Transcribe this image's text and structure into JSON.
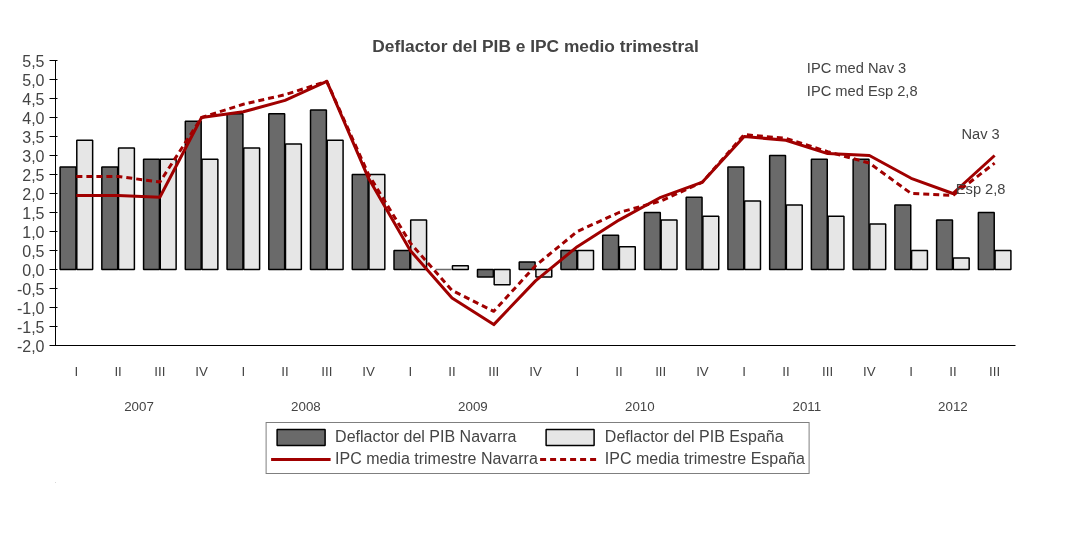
{
  "chart_data": {
    "type": "bar",
    "title": "Deflactor del PIB e IPC medio trimestral",
    "categories": [
      "I",
      "II",
      "III",
      "IV",
      "I",
      "II",
      "III",
      "IV",
      "I",
      "II",
      "III",
      "IV",
      "I",
      "II",
      "III",
      "IV",
      "I",
      "II",
      "III",
      "IV",
      "I",
      "II",
      "III"
    ],
    "series": [
      {
        "name": "Deflactor del PIB Navarra",
        "color": "#6a6a6a",
        "values": [
          2.7,
          2.7,
          2.9,
          3.9,
          4.1,
          4.1,
          4.2,
          2.5,
          0.5,
          0.0,
          -0.2,
          0.2,
          0.5,
          0.9,
          1.5,
          1.9,
          2.7,
          3.0,
          2.9,
          2.9,
          1.7,
          1.3,
          1.5
        ]
      },
      {
        "name": "Deflactor del PIB España",
        "color": "#e6e6e6",
        "values": [
          3.4,
          3.2,
          2.9,
          2.9,
          3.2,
          3.3,
          3.4,
          2.5,
          1.3,
          0.1,
          -0.4,
          -0.2,
          0.5,
          0.6,
          1.3,
          1.4,
          1.8,
          1.7,
          1.4,
          1.2,
          0.5,
          0.3,
          0.5
        ]
      },
      {
        "name": "IPC media trimestre Navarra",
        "type": "line",
        "line_style": "solid",
        "color": "#a00000",
        "values": [
          1.95,
          1.95,
          1.9,
          4.0,
          4.15,
          4.45,
          4.95,
          2.4,
          0.5,
          -0.75,
          -1.45,
          -0.3,
          0.6,
          1.3,
          1.9,
          2.3,
          3.5,
          3.4,
          3.05,
          3.0,
          2.4,
          2.0,
          3.0
        ]
      },
      {
        "name": "IPC media trimestre España",
        "type": "line",
        "line_style": "dashed",
        "color": "#a00000",
        "values": [
          2.45,
          2.45,
          2.3,
          4.0,
          4.35,
          4.6,
          4.95,
          2.5,
          0.7,
          -0.55,
          -1.1,
          0.1,
          1.0,
          1.5,
          1.8,
          2.3,
          3.55,
          3.45,
          3.1,
          2.8,
          2.0,
          1.95,
          2.8
        ]
      }
    ],
    "ylim": [
      -2.0,
      5.5
    ],
    "yticks": [
      {
        "value": -2.0,
        "label": "-2,0"
      },
      {
        "value": -1.5,
        "label": "-1,5"
      },
      {
        "value": -1.0,
        "label": "-1,0"
      },
      {
        "value": -0.5,
        "label": "-0,5"
      },
      {
        "value": 0.0,
        "label": "0,0"
      },
      {
        "value": 0.5,
        "label": "0,5"
      },
      {
        "value": 1.0,
        "label": "1,0"
      },
      {
        "value": 1.5,
        "label": "1,5"
      },
      {
        "value": 2.0,
        "label": "2,0"
      },
      {
        "value": 2.5,
        "label": "2,5"
      },
      {
        "value": 3.0,
        "label": "3,0"
      },
      {
        "value": 3.5,
        "label": "3,5"
      },
      {
        "value": 4.0,
        "label": "4,0"
      },
      {
        "value": 4.5,
        "label": "4,5"
      },
      {
        "value": 5.0,
        "label": "5,0"
      },
      {
        "value": 5.5,
        "label": "5,5"
      }
    ],
    "annotations": [
      "2007",
      "2008",
      "2009",
      "2010",
      "2011",
      "2012",
      "IPC med Nav 3",
      "IPC med Esp 2,8",
      "Nav 3",
      "Esp 2,8"
    ],
    "grid": false,
    "legend": "bottom"
  }
}
